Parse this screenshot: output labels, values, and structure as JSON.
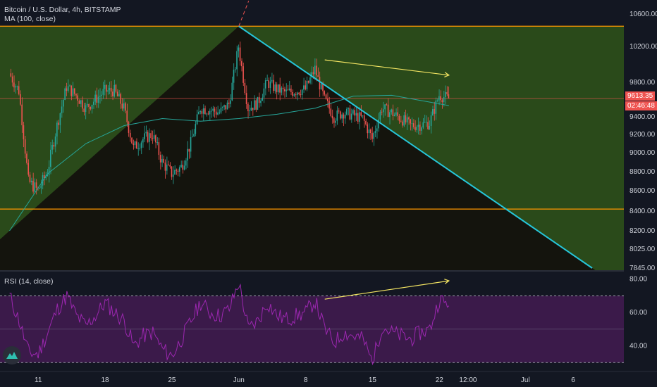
{
  "legend": {
    "symbol_line": "Bitcoin / U.S. Dollar, 4h, BITSTAMP",
    "ma_line": "MA (100, close)",
    "rsi_line": "RSI (14, close)"
  },
  "price_badge": {
    "value": "9613.35",
    "countdown": "02:46:48",
    "color": "#ef5350"
  },
  "colors": {
    "background": "#131722",
    "green_zone": "#2a4a1a",
    "triangle": "#120f0c",
    "trend_line": "#26c6da",
    "ma_line": "#26a69a",
    "up_candle": "#26a69a",
    "down_candle": "#ef5350",
    "rsi_line": "#9c27b0",
    "rsi_band": "#3b1a4a",
    "annotation_arrow": "#f5e663",
    "horizontal_level": "#ff9800"
  },
  "chart_data": [
    {
      "type": "candlestick",
      "title": "Bitcoin / U.S. Dollar, 4h, BITSTAMP",
      "y_ticks": [
        10600,
        10200,
        9800,
        9400,
        9200,
        9000,
        8800,
        8600,
        8400,
        8200,
        8025,
        7845
      ],
      "y_tick_labels": [
        "10600.00",
        "10200.00",
        "9800.00",
        "9400.00",
        "9200.00",
        "9000.00",
        "8800.00",
        "8600.00",
        "8400.00",
        "8200.00",
        "8025.00",
        "7845.00"
      ],
      "ylim": [
        7845,
        10800
      ],
      "x_tick_labels": [
        "11",
        "18",
        "25",
        "Jun",
        "8",
        "15",
        "22",
        "12:00",
        "Jul",
        "6"
      ],
      "horizontal_levels": [
        10450,
        8420
      ],
      "last_price": 9613.35,
      "series": [
        {
          "name": "MA (100, close)",
          "x": [
            "May 8",
            "May 12",
            "May 16",
            "May 20",
            "May 24",
            "May 28",
            "Jun 1",
            "Jun 5",
            "Jun 9",
            "Jun 13",
            "Jun 17",
            "Jun 21",
            "Jun 23"
          ],
          "values": [
            8200,
            8780,
            9100,
            9300,
            9380,
            9350,
            9380,
            9430,
            9500,
            9640,
            9650,
            9570,
            9530
          ]
        }
      ],
      "close_path": {
        "x": [
          "May 8",
          "May 9",
          "May 10",
          "May 11",
          "May 12",
          "May 13",
          "May 14",
          "May 15",
          "May 16",
          "May 17",
          "May 18",
          "May 19",
          "May 20",
          "May 21",
          "May 22",
          "May 23",
          "May 24",
          "May 25",
          "May 26",
          "May 27",
          "May 28",
          "May 29",
          "May 30",
          "May 31",
          "Jun 1",
          "Jun 2",
          "Jun 3",
          "Jun 4",
          "Jun 5",
          "Jun 6",
          "Jun 7",
          "Jun 8",
          "Jun 9",
          "Jun 10",
          "Jun 11",
          "Jun 12",
          "Jun 13",
          "Jun 14",
          "Jun 15",
          "Jun 16",
          "Jun 17",
          "Jun 18",
          "Jun 19",
          "Jun 20",
          "Jun 21",
          "Jun 22",
          "Jun 23"
        ],
        "values": [
          9900,
          9700,
          8700,
          8600,
          8800,
          9300,
          9750,
          9650,
          9500,
          9600,
          9700,
          9700,
          9500,
          9050,
          9150,
          9200,
          8900,
          8780,
          8850,
          9100,
          9500,
          9480,
          9450,
          9550,
          10200,
          9500,
          9560,
          9800,
          9720,
          9680,
          9700,
          9720,
          9950,
          9600,
          9400,
          9450,
          9420,
          9380,
          9150,
          9500,
          9450,
          9380,
          9300,
          9310,
          9330,
          9650,
          9613
        ]
      },
      "trend_lines": [
        {
          "from": [
            "May 8",
            8200
          ],
          "to": [
            "Jun 1",
            10450
          ]
        },
        {
          "from": [
            "Jun 1",
            10450
          ],
          "to": [
            "Jul 8",
            7845
          ]
        }
      ]
    },
    {
      "type": "line",
      "title": "RSI (14, close)",
      "y_ticks": [
        80,
        60,
        40
      ],
      "y_tick_labels": [
        "80.00",
        "60.00",
        "40.00"
      ],
      "ylim": [
        28,
        82
      ],
      "bands": [
        70,
        30
      ],
      "x": [
        "May 8",
        "May 9",
        "May 10",
        "May 11",
        "May 12",
        "May 13",
        "May 14",
        "May 15",
        "May 16",
        "May 17",
        "May 18",
        "May 19",
        "May 20",
        "May 21",
        "May 22",
        "May 23",
        "May 24",
        "May 25",
        "May 26",
        "May 27",
        "May 28",
        "May 29",
        "May 30",
        "May 31",
        "Jun 1",
        "Jun 2",
        "Jun 3",
        "Jun 4",
        "Jun 5",
        "Jun 6",
        "Jun 7",
        "Jun 8",
        "Jun 9",
        "Jun 10",
        "Jun 11",
        "Jun 12",
        "Jun 13",
        "Jun 14",
        "Jun 15",
        "Jun 16",
        "Jun 17",
        "Jun 18",
        "Jun 19",
        "Jun 20",
        "Jun 21",
        "Jun 22",
        "Jun 23"
      ],
      "values": [
        70,
        55,
        36,
        35,
        48,
        62,
        70,
        58,
        52,
        58,
        66,
        60,
        55,
        40,
        46,
        48,
        38,
        34,
        44,
        55,
        66,
        60,
        58,
        62,
        78,
        50,
        55,
        66,
        58,
        56,
        58,
        60,
        67,
        50,
        42,
        48,
        46,
        44,
        30,
        52,
        48,
        46,
        44,
        48,
        50,
        68,
        64
      ]
    }
  ]
}
